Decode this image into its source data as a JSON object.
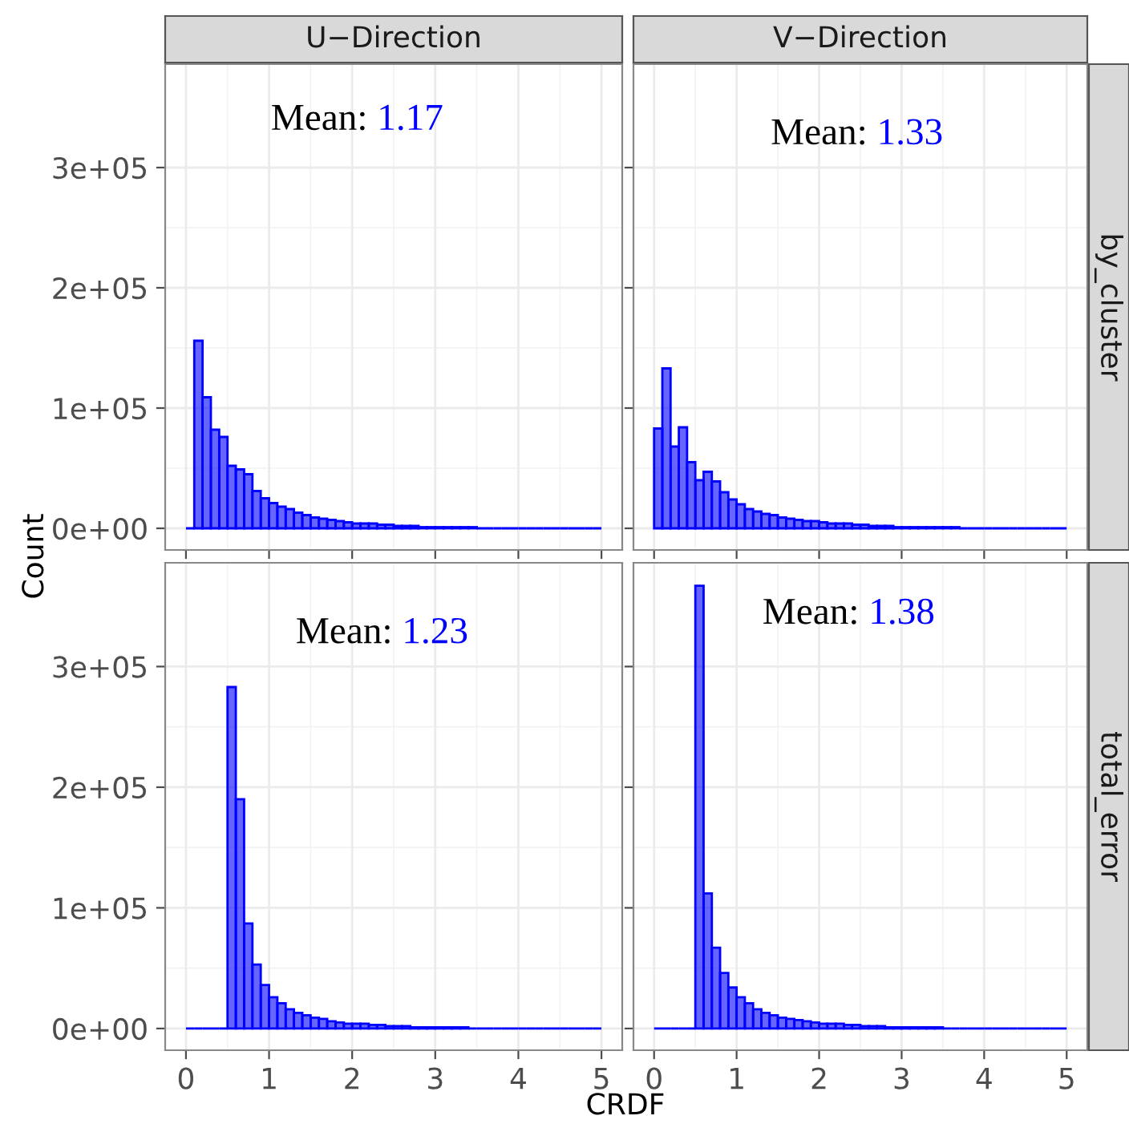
{
  "chart_data": [
    {
      "type": "histogram",
      "title": "U−Direction",
      "ylabel": "Count",
      "color": "#0000ff",
      "tick_labels": "y",
      "grid": true,
      "annotations": [
        "Mean: 1.17"
      ],
      "bins": [
        0,
        0.1,
        0.2,
        0.3,
        0.4,
        0.5,
        0.6,
        0.7,
        0.8,
        0.9,
        1,
        1.1,
        1.2,
        1.3,
        1.4,
        1.5,
        1.6,
        1.7,
        1.8,
        1.9,
        2,
        2.1,
        2.2,
        2.3,
        2.4,
        2.5,
        2.6,
        2.7,
        2.8,
        2.9,
        3,
        3.1,
        3.2,
        3.3,
        3.4,
        3.5,
        3.6,
        3.7,
        3.8,
        3.9,
        4,
        4.1,
        4.2,
        4.3,
        4.4,
        4.5,
        4.6,
        4.7,
        4.8,
        4.9,
        5
      ],
      "values": [
        0,
        156000,
        109000,
        82000,
        76000,
        52000,
        49000,
        45000,
        31000,
        25000,
        21000,
        18000,
        16000,
        13000,
        11000,
        9000,
        8000,
        7000,
        6000,
        5000,
        4000,
        4000,
        4000,
        3000,
        3000,
        2000,
        2000,
        2000,
        1000,
        1000,
        1000,
        1000,
        1000,
        1000,
        1000,
        0,
        0,
        0,
        0,
        0,
        0,
        0,
        0,
        0,
        0,
        0,
        0,
        0,
        0,
        0
      ],
      "xlim": [
        -0.25,
        5.25
      ],
      "xticks": [
        {
          "value": 0,
          "label": null
        },
        {
          "value": 1,
          "label": null
        },
        {
          "value": 2,
          "label": null
        },
        {
          "value": 3,
          "label": null
        },
        {
          "value": 4,
          "label": null
        },
        {
          "value": 5,
          "label": null
        }
      ],
      "ylim": [
        -18000,
        386000
      ],
      "yticks": [
        {
          "value": 0,
          "label": "0e+00"
        },
        {
          "value": 100000,
          "label": "1e+05"
        },
        {
          "value": 200000,
          "label": "2e+05"
        },
        {
          "value": 300000,
          "label": "3e+05"
        }
      ]
    },
    {
      "type": "histogram",
      "title": "V−Direction",
      "y2label": "by_cluster",
      "color": "#0000ff",
      "tick_labels": false,
      "grid": true,
      "annotations": [
        "Mean: 1.33"
      ],
      "bins": [
        0,
        0.1,
        0.2,
        0.3,
        0.4,
        0.5,
        0.6,
        0.7,
        0.8,
        0.9,
        1,
        1.1,
        1.2,
        1.3,
        1.4,
        1.5,
        1.6,
        1.7,
        1.8,
        1.9,
        2,
        2.1,
        2.2,
        2.3,
        2.4,
        2.5,
        2.6,
        2.7,
        2.8,
        2.9,
        3,
        3.1,
        3.2,
        3.3,
        3.4,
        3.5,
        3.6,
        3.7,
        3.8,
        3.9,
        4,
        4.1,
        4.2,
        4.3,
        4.4,
        4.5,
        4.6,
        4.7,
        4.8,
        4.9,
        5
      ],
      "values": [
        83000,
        133000,
        68000,
        84000,
        55000,
        40000,
        47000,
        39000,
        30000,
        24000,
        20000,
        16000,
        14000,
        12000,
        11000,
        9000,
        8000,
        7000,
        6000,
        6000,
        5000,
        4000,
        4000,
        4000,
        3000,
        3000,
        2000,
        2000,
        2000,
        1000,
        1000,
        1000,
        1000,
        1000,
        1000,
        1000,
        1000,
        0,
        0,
        0,
        0,
        0,
        0,
        0,
        0,
        0,
        0,
        0,
        0,
        0
      ],
      "xlim": [
        -0.25,
        5.25
      ],
      "xticks": [
        {
          "value": 0,
          "label": null
        },
        {
          "value": 1,
          "label": null
        },
        {
          "value": 2,
          "label": null
        },
        {
          "value": 3,
          "label": null
        },
        {
          "value": 4,
          "label": null
        },
        {
          "value": 5,
          "label": null
        }
      ],
      "ylim": [
        -18000,
        386000
      ],
      "yticks": [
        {
          "value": 0,
          "label": null
        },
        {
          "value": 100000,
          "label": null
        },
        {
          "value": 200000,
          "label": null
        },
        {
          "value": 300000,
          "label": null
        }
      ]
    },
    {
      "type": "histogram",
      "xlabel": "CRDF",
      "color": "#0000ff",
      "grid": true,
      "annotations": [
        "Mean: 1.23"
      ],
      "bins": [
        0,
        0.1,
        0.2,
        0.3,
        0.4,
        0.5,
        0.6,
        0.7,
        0.8,
        0.9,
        1,
        1.1,
        1.2,
        1.3,
        1.4,
        1.5,
        1.6,
        1.7,
        1.8,
        1.9,
        2,
        2.1,
        2.2,
        2.3,
        2.4,
        2.5,
        2.6,
        2.7,
        2.8,
        2.9,
        3,
        3.1,
        3.2,
        3.3,
        3.4,
        3.5,
        3.6,
        3.7,
        3.8,
        3.9,
        4,
        4.1,
        4.2,
        4.3,
        4.4,
        4.5,
        4.6,
        4.7,
        4.8,
        4.9,
        5
      ],
      "values": [
        0,
        0,
        0,
        0,
        0,
        283000,
        190000,
        87000,
        53000,
        36000,
        26000,
        21000,
        16000,
        13000,
        11000,
        9000,
        8000,
        6000,
        5000,
        4000,
        4000,
        4000,
        3000,
        3000,
        2000,
        2000,
        2000,
        1000,
        1000,
        1000,
        1000,
        1000,
        1000,
        1000,
        0,
        0,
        0,
        0,
        0,
        0,
        0,
        0,
        0,
        0,
        0,
        0,
        0,
        0,
        0,
        0
      ],
      "xlim": [
        -0.25,
        5.25
      ],
      "xticks": [
        0,
        1,
        2,
        3,
        4,
        5
      ],
      "ylim": [
        -18000,
        386000
      ],
      "yticks": [
        {
          "value": 0,
          "label": "0e+00"
        },
        {
          "value": 100000,
          "label": "1e+05"
        },
        {
          "value": 200000,
          "label": "2e+05"
        },
        {
          "value": 300000,
          "label": "3e+05"
        }
      ]
    },
    {
      "type": "histogram",
      "y2label": "total_error",
      "color": "#0000ff",
      "tick_labels": "x",
      "grid": true,
      "annotations": [
        "Mean: 1.38"
      ],
      "bins": [
        0,
        0.1,
        0.2,
        0.3,
        0.4,
        0.5,
        0.6,
        0.7,
        0.8,
        0.9,
        1,
        1.1,
        1.2,
        1.3,
        1.4,
        1.5,
        1.6,
        1.7,
        1.8,
        1.9,
        2,
        2.1,
        2.2,
        2.3,
        2.4,
        2.5,
        2.6,
        2.7,
        2.8,
        2.9,
        3,
        3.1,
        3.2,
        3.3,
        3.4,
        3.5,
        3.6,
        3.7,
        3.8,
        3.9,
        4,
        4.1,
        4.2,
        4.3,
        4.4,
        4.5,
        4.6,
        4.7,
        4.8,
        4.9,
        5
      ],
      "values": [
        0,
        0,
        0,
        0,
        0,
        367000,
        112000,
        67000,
        46000,
        34000,
        26000,
        21000,
        16000,
        13000,
        11000,
        9000,
        8000,
        7000,
        6000,
        5000,
        4000,
        4000,
        4000,
        3000,
        3000,
        2000,
        2000,
        2000,
        1000,
        1000,
        1000,
        1000,
        1000,
        1000,
        1000,
        0,
        0,
        0,
        0,
        0,
        0,
        0,
        0,
        0,
        0,
        0,
        0,
        0,
        0,
        0
      ],
      "xlim": [
        -0.25,
        5.25
      ],
      "xticks": [
        0,
        1,
        2,
        3,
        4,
        5
      ],
      "ylim": [
        -18000,
        386000
      ],
      "yticks": [
        {
          "value": 0,
          "label": null
        },
        {
          "value": 100000,
          "label": null
        },
        {
          "value": 200000,
          "label": null
        },
        {
          "value": 300000,
          "label": null
        }
      ]
    }
  ]
}
